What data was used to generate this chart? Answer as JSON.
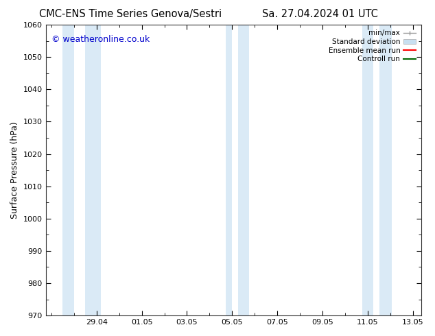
{
  "title_left": "CMC-ENS Time Series Genova/Sestri",
  "title_right": "Sa. 27.04.2024 01 UTC",
  "ylabel": "Surface Pressure (hPa)",
  "ylim": [
    970,
    1060
  ],
  "yticks": [
    970,
    980,
    990,
    1000,
    1010,
    1020,
    1030,
    1040,
    1050,
    1060
  ],
  "xtick_labels": [
    "29.04",
    "01.05",
    "03.05",
    "05.05",
    "07.05",
    "09.05",
    "11.05",
    "13.05"
  ],
  "copyright_text": "© weatheronline.co.uk",
  "copyright_color": "#0000cc",
  "bg_color": "#ffffff",
  "shaded_band_color": "#daeaf6",
  "legend_entries": [
    {
      "label": "min/max",
      "color": "#999999",
      "style": "errorbar"
    },
    {
      "label": "Standard deviation",
      "color": "#c8dff0",
      "style": "bar"
    },
    {
      "label": "Ensemble mean run",
      "color": "#ff0000",
      "style": "line"
    },
    {
      "label": "Controll run",
      "color": "#006600",
      "style": "line"
    }
  ],
  "title_fontsize": 10.5,
  "axis_label_fontsize": 9,
  "tick_fontsize": 8,
  "copyright_fontsize": 9,
  "legend_fontsize": 7.5
}
